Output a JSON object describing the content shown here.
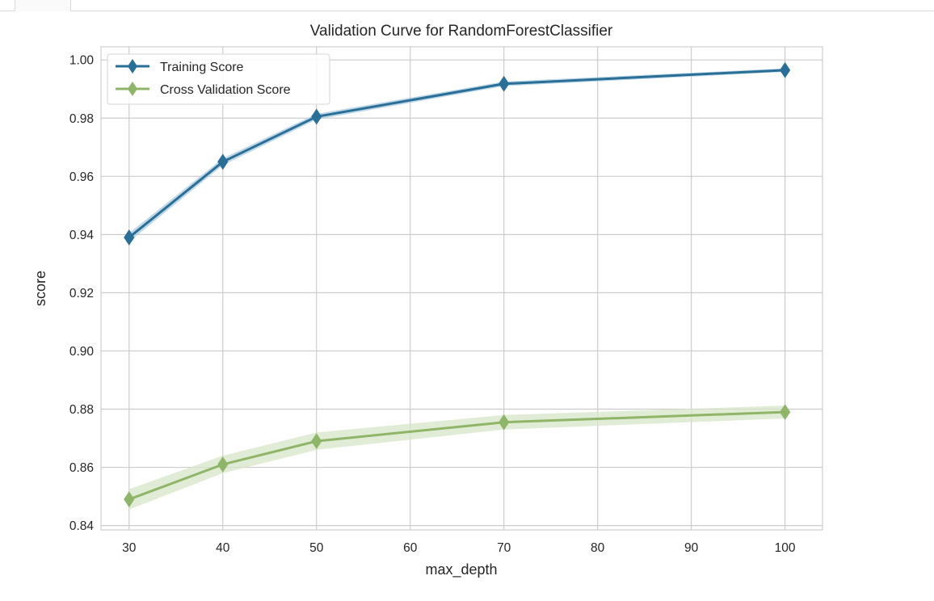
{
  "chart_data": {
    "type": "line",
    "title": "Validation Curve for RandomForestClassifier",
    "xlabel": "max_depth",
    "ylabel": "score",
    "x": [
      30,
      40,
      50,
      70,
      100
    ],
    "xlim": [
      27,
      104
    ],
    "ylim": [
      0.8385,
      1.0045
    ],
    "xticks": [
      30,
      40,
      50,
      60,
      70,
      80,
      90,
      100
    ],
    "yticks": [
      0.84,
      0.86,
      0.88,
      0.9,
      0.92,
      0.94,
      0.96,
      0.98,
      1.0
    ],
    "xtick_labels": [
      "30",
      "40",
      "50",
      "60",
      "70",
      "80",
      "90",
      "100"
    ],
    "ytick_labels": [
      "0.84",
      "0.86",
      "0.88",
      "0.90",
      "0.92",
      "0.94",
      "0.96",
      "0.98",
      "1.00"
    ],
    "grid": true,
    "legend_position": "top-left",
    "series": [
      {
        "name": "Training Score",
        "color": "#2a6f97",
        "band_color": "#a9c9de",
        "marker": "diamond",
        "values": [
          0.939,
          0.965,
          0.9805,
          0.9918,
          0.9965
        ],
        "band": [
          0.0015,
          0.0012,
          0.001,
          0.0008,
          0.0006
        ]
      },
      {
        "name": "Cross Validation Score",
        "color": "#8fb568",
        "band_color": "#d7e6c8",
        "marker": "diamond",
        "values": [
          0.849,
          0.861,
          0.869,
          0.8755,
          0.879
        ],
        "band": [
          0.0035,
          0.003,
          0.003,
          0.0025,
          0.0022
        ]
      }
    ]
  }
}
